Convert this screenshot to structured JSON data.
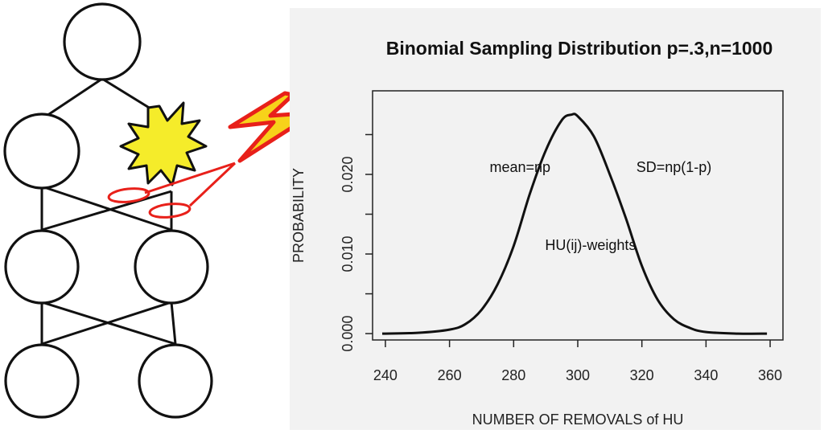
{
  "network_diagram": {
    "layers": [
      1,
      2,
      2,
      2
    ],
    "colors": {
      "stroke": "#111111",
      "burst_fill": "#f5ec2a",
      "lightning_fill": "#f7d21a",
      "removal_mark": "#e8201a"
    }
  },
  "chart_data": {
    "type": "line",
    "title": "Binomial Sampling Distribution p=.3,n=1000",
    "xlabel": "NUMBER OF REMOVALS of HU",
    "ylabel": "PROBABILITY",
    "xlim": [
      236,
      364
    ],
    "ylim": [
      -0.0008,
      0.0305
    ],
    "xticks": [
      240,
      260,
      280,
      300,
      320,
      340,
      360
    ],
    "yticks": [
      0.0,
      0.005,
      0.01,
      0.015,
      0.02,
      0.025
    ],
    "ytick_labels": [
      "0.000",
      "0.010",
      "0.020"
    ],
    "ytick_label_values": [
      0.0,
      0.01,
      0.02
    ],
    "x": [
      239,
      250,
      260,
      265,
      270,
      275,
      280,
      285,
      290,
      295,
      298,
      300,
      305,
      310,
      315,
      320,
      325,
      330,
      335,
      340,
      350,
      359
    ],
    "y": [
      0.0,
      0.0001,
      0.0005,
      0.0012,
      0.003,
      0.0062,
      0.011,
      0.0175,
      0.023,
      0.0268,
      0.0275,
      0.0273,
      0.0248,
      0.02,
      0.0145,
      0.0085,
      0.0042,
      0.0018,
      0.0007,
      0.0002,
      0.0,
      0.0
    ],
    "annotations": [
      {
        "text": "mean=np",
        "x": 282,
        "y": 0.0203
      },
      {
        "text": "SD=np(1-p)",
        "x": 330,
        "y": 0.0203
      },
      {
        "text": "HU(ij)-weights",
        "x": 304,
        "y": 0.0105
      }
    ],
    "grid": false,
    "line_color": "#111111"
  }
}
